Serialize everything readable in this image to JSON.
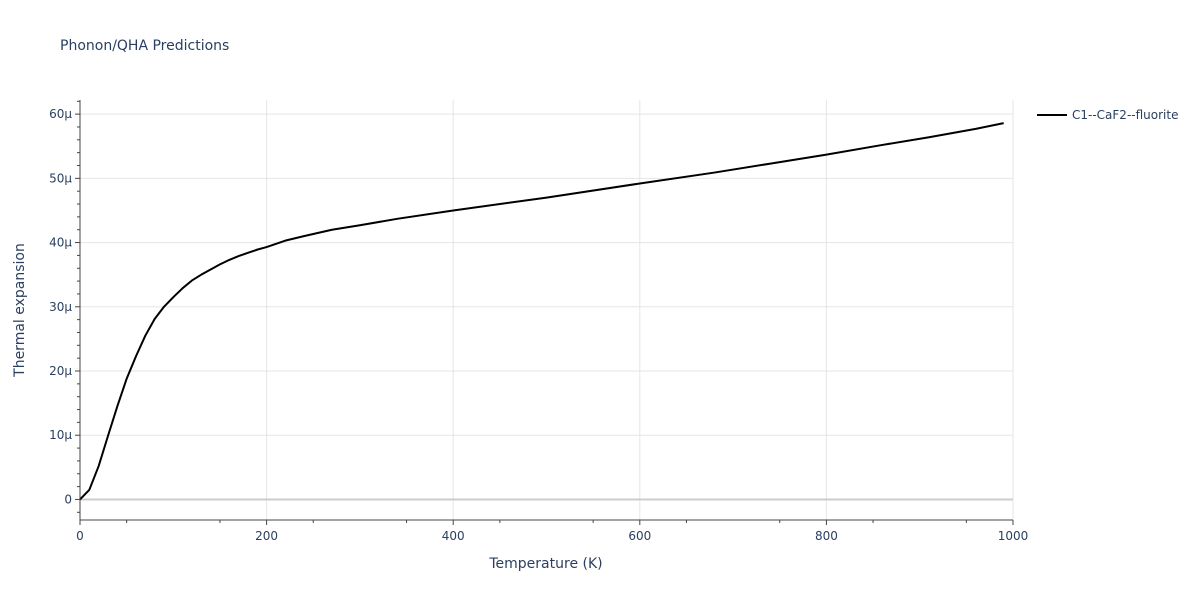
{
  "chart_data": {
    "type": "line",
    "title": "Phonon/QHA Predictions",
    "xlabel": "Temperature (K)",
    "ylabel": "Thermal expansion",
    "xlim": [
      0,
      1000
    ],
    "ylim": [
      -3.2,
      62.2
    ],
    "x_unit_scale": "linear",
    "grid": true,
    "legend_position": "top-right outside",
    "x_ticks": [
      {
        "value": 0,
        "label": "0"
      },
      {
        "value": 200,
        "label": "200"
      },
      {
        "value": 400,
        "label": "400"
      },
      {
        "value": 600,
        "label": "600"
      },
      {
        "value": 800,
        "label": "800"
      },
      {
        "value": 1000,
        "label": "1000"
      }
    ],
    "y_ticks": [
      {
        "value": 0,
        "label": "0"
      },
      {
        "value": 10,
        "label": "10µ"
      },
      {
        "value": 20,
        "label": "20µ"
      },
      {
        "value": 30,
        "label": "30µ"
      },
      {
        "value": 40,
        "label": "40µ"
      },
      {
        "value": 50,
        "label": "50µ"
      },
      {
        "value": 60,
        "label": "60µ"
      }
    ],
    "series": [
      {
        "name": "C1--CaF2--fluorite",
        "color": "#000000",
        "x": [
          0,
          10,
          20,
          30,
          40,
          50,
          60,
          70,
          80,
          90,
          100,
          110,
          120,
          130,
          140,
          150,
          160,
          170,
          180,
          190,
          200,
          220,
          240,
          270,
          300,
          340,
          400,
          500,
          600,
          680,
          740,
          800,
          860,
          910,
          960,
          990
        ],
        "y": [
          0,
          1.5,
          5.2,
          9.9,
          14.5,
          18.8,
          22.3,
          25.5,
          28.1,
          30.0,
          31.5,
          32.9,
          34.1,
          35.0,
          35.8,
          36.6,
          37.3,
          37.9,
          38.4,
          38.9,
          39.3,
          40.3,
          41.0,
          42.0,
          42.7,
          43.7,
          45.0,
          47.0,
          49.2,
          50.9,
          52.3,
          53.7,
          55.2,
          56.4,
          57.7,
          58.6
        ]
      }
    ]
  }
}
